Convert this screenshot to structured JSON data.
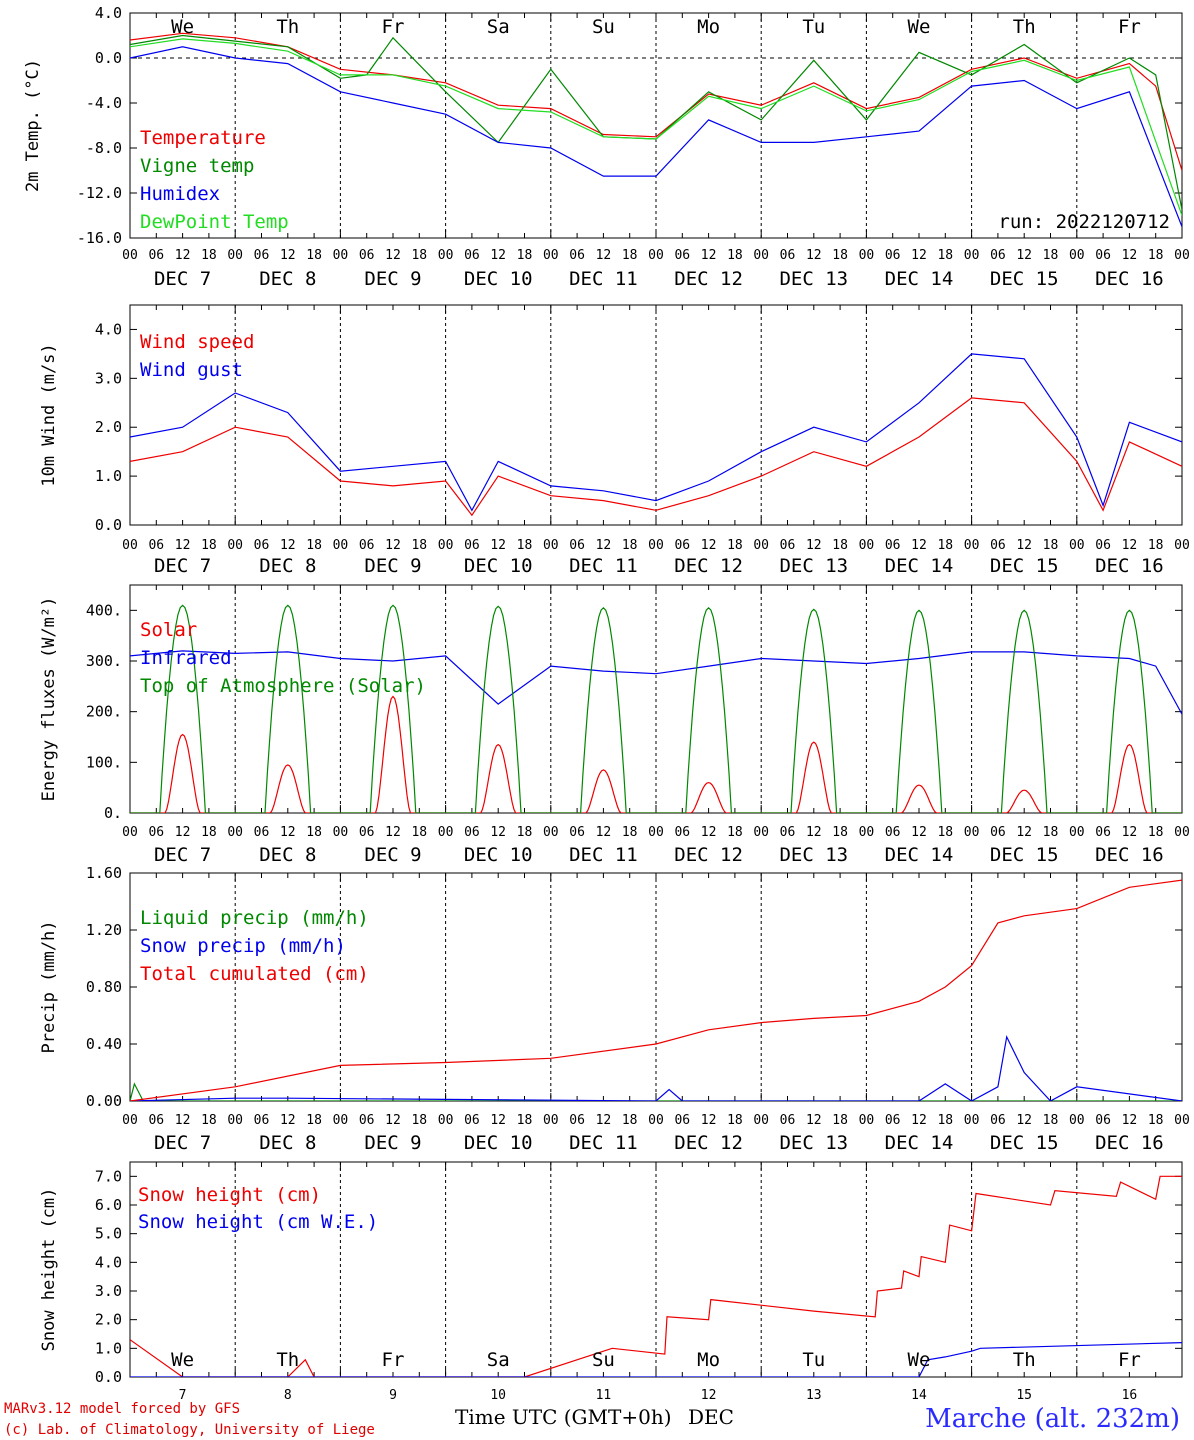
{
  "station": "Marche (alt. 232m)",
  "footer_model": "MARv3.12 model forced by GFS",
  "footer_copyright": "(c) Lab. of Climatology, University of Liege",
  "run_label": "run: 2022120712",
  "x_axis_title": "Time UTC (GMT+0h)",
  "x_axis_unit": "DEC",
  "hour_ticks": [
    "00",
    "06",
    "12",
    "18"
  ],
  "final_tick": "00",
  "days": [
    "DEC  7",
    "DEC  8",
    "DEC  9",
    "DEC 10",
    "DEC 11",
    "DEC 12",
    "DEC 13",
    "DEC 14",
    "DEC 15",
    "DEC 16"
  ],
  "day_numbers": [
    "7",
    "8",
    "9",
    "10",
    "11",
    "12",
    "13",
    "14",
    "15",
    "16"
  ],
  "weekdays": [
    {
      "label": "We",
      "color": "#000000"
    },
    {
      "label": "Th",
      "color": "#000000"
    },
    {
      "label": "Fr",
      "color": "#000000"
    },
    {
      "label": "Sa",
      "color": "#e00000"
    },
    {
      "label": "Su",
      "color": "#e00000"
    },
    {
      "label": "Mo",
      "color": "#000000"
    },
    {
      "label": "Tu",
      "color": "#000000"
    },
    {
      "label": "We",
      "color": "#000000"
    },
    {
      "label": "Th",
      "color": "#000000"
    },
    {
      "label": "Fr",
      "color": "#000000"
    }
  ],
  "colors": {
    "red": "#ee0000",
    "green": "#008800",
    "blue": "#0000ee",
    "lightgreen": "#22dd22"
  },
  "chart_data": [
    {
      "type": "line",
      "ylabel": "2m Temp. (°C)",
      "ylim": [
        -16,
        4
      ],
      "yticks": [
        "4.0",
        "0.0",
        "-4.0",
        "-8.0",
        "-12.0",
        "-16.0"
      ],
      "zero_line": true,
      "x_range_hours": [
        0,
        240
      ],
      "series": [
        {
          "name": "Temperature",
          "color": "#ee0000",
          "x": [
            0,
            12,
            24,
            36,
            48,
            60,
            72,
            84,
            96,
            108,
            120,
            132,
            144,
            156,
            168,
            180,
            192,
            204,
            216,
            228,
            234,
            240
          ],
          "y": [
            1.6,
            2.2,
            1.8,
            1.0,
            -1.0,
            -1.5,
            -2.2,
            -4.2,
            -4.5,
            -6.8,
            -7.0,
            -3.2,
            -4.2,
            -2.2,
            -4.5,
            -3.5,
            -1.0,
            0.0,
            -1.8,
            -0.5,
            -2.5,
            -10.0
          ]
        },
        {
          "name": "Vigne temp",
          "color": "#008800",
          "x": [
            0,
            12,
            24,
            36,
            48,
            54,
            60,
            72,
            84,
            96,
            108,
            120,
            132,
            144,
            156,
            168,
            180,
            192,
            204,
            216,
            228,
            234,
            240
          ],
          "y": [
            1.2,
            2.0,
            1.5,
            1.0,
            -1.8,
            -1.5,
            1.8,
            -3.0,
            -7.5,
            -1.0,
            -7.0,
            -7.2,
            -3.0,
            -5.5,
            -0.2,
            -5.5,
            0.5,
            -1.5,
            1.2,
            -2.2,
            0.0,
            -1.5,
            -13.5
          ]
        },
        {
          "name": "Humidex",
          "color": "#0000ee",
          "x": [
            0,
            12,
            24,
            36,
            48,
            60,
            72,
            84,
            96,
            108,
            120,
            132,
            144,
            156,
            168,
            180,
            192,
            204,
            216,
            228,
            240
          ],
          "y": [
            0.0,
            1.0,
            0.0,
            -0.5,
            -3.0,
            -4.0,
            -5.0,
            -7.5,
            -8.0,
            -10.5,
            -10.5,
            -5.5,
            -7.5,
            -7.5,
            -7.0,
            -6.5,
            -2.5,
            -2.0,
            -4.5,
            -3.0,
            -15.0
          ]
        },
        {
          "name": "DewPoint Temp",
          "color": "#22dd22",
          "x": [
            0,
            12,
            24,
            36,
            48,
            60,
            72,
            84,
            96,
            108,
            120,
            132,
            144,
            156,
            168,
            180,
            192,
            204,
            216,
            228,
            240
          ],
          "y": [
            1.0,
            1.7,
            1.3,
            0.6,
            -1.5,
            -1.5,
            -2.5,
            -4.5,
            -4.8,
            -7.0,
            -7.2,
            -3.4,
            -4.5,
            -2.5,
            -4.7,
            -3.7,
            -1.2,
            -0.2,
            -2.0,
            -0.8,
            -14.0
          ]
        }
      ]
    },
    {
      "type": "line",
      "ylabel": "10m Wind (m/s)",
      "ylim": [
        0,
        4.5
      ],
      "yticks": [
        "4.0",
        "3.0",
        "2.0",
        "1.0",
        "0.0"
      ],
      "x_range_hours": [
        0,
        240
      ],
      "series": [
        {
          "name": "Wind speed",
          "color": "#ee0000",
          "x": [
            0,
            12,
            24,
            36,
            48,
            60,
            72,
            78,
            84,
            96,
            108,
            120,
            132,
            144,
            156,
            168,
            180,
            192,
            204,
            216,
            222,
            228,
            240
          ],
          "y": [
            1.3,
            1.5,
            2.0,
            1.8,
            0.9,
            0.8,
            0.9,
            0.2,
            1.0,
            0.6,
            0.5,
            0.3,
            0.6,
            1.0,
            1.5,
            1.2,
            1.8,
            2.6,
            2.5,
            1.3,
            0.3,
            1.7,
            1.2
          ]
        },
        {
          "name": "Wind gust",
          "color": "#0000ee",
          "x": [
            0,
            12,
            24,
            36,
            48,
            60,
            72,
            78,
            84,
            96,
            108,
            120,
            132,
            144,
            156,
            168,
            180,
            192,
            204,
            216,
            222,
            228,
            240
          ],
          "y": [
            1.8,
            2.0,
            2.7,
            2.3,
            1.1,
            1.2,
            1.3,
            0.3,
            1.3,
            0.8,
            0.7,
            0.5,
            0.9,
            1.5,
            2.0,
            1.7,
            2.5,
            3.5,
            3.4,
            1.8,
            0.4,
            2.1,
            1.7
          ]
        }
      ]
    },
    {
      "type": "line",
      "ylabel": "Energy fluxes (W/m²)",
      "ylim": [
        0,
        450
      ],
      "yticks": [
        "400.",
        "300.",
        "200.",
        "100.",
        "0."
      ],
      "x_range_hours": [
        0,
        240
      ],
      "daily_peaks": {
        "Solar": [
          155,
          95,
          230,
          135,
          85,
          60,
          140,
          55,
          45,
          135
        ],
        "Top of Atmosphere (Solar)": [
          410,
          410,
          410,
          408,
          405,
          405,
          402,
          400,
          400,
          400
        ]
      },
      "series": [
        {
          "name": "Solar",
          "color": "#ee0000"
        },
        {
          "name": "Infrared",
          "color": "#0000ee",
          "x": [
            0,
            12,
            24,
            36,
            48,
            60,
            72,
            84,
            96,
            108,
            120,
            132,
            144,
            156,
            168,
            180,
            192,
            204,
            216,
            228,
            234,
            240
          ],
          "y": [
            310,
            320,
            315,
            318,
            305,
            300,
            310,
            215,
            290,
            280,
            275,
            290,
            305,
            300,
            295,
            305,
            318,
            318,
            310,
            305,
            290,
            195
          ]
        },
        {
          "name": "Top of Atmosphere (Solar)",
          "color": "#008800"
        }
      ]
    },
    {
      "type": "line",
      "ylabel": "Precip (mm/h)",
      "ylim": [
        0,
        1.6
      ],
      "yticks": [
        "1.60",
        "1.20",
        "0.80",
        "0.40",
        "0.00"
      ],
      "x_range_hours": [
        0,
        240
      ],
      "series": [
        {
          "name": "Liquid precip (mm/h)",
          "color": "#008800",
          "x": [
            0,
            1,
            3,
            240
          ],
          "y": [
            0.0,
            0.12,
            0.0,
            0.0
          ]
        },
        {
          "name": "Snow precip (mm/h)",
          "color": "#0000ee",
          "x": [
            0,
            24,
            36,
            120,
            123,
            126,
            180,
            186,
            192,
            198,
            200,
            204,
            210,
            216,
            240
          ],
          "y": [
            0.0,
            0.02,
            0.02,
            0.0,
            0.08,
            0.0,
            0.0,
            0.12,
            0.0,
            0.1,
            0.45,
            0.2,
            0.0,
            0.1,
            0.0
          ]
        },
        {
          "name": "Total cumulated (cm)",
          "color": "#ee0000",
          "x": [
            0,
            24,
            48,
            72,
            96,
            120,
            132,
            144,
            156,
            168,
            180,
            186,
            192,
            198,
            204,
            216,
            228,
            240
          ],
          "y": [
            0.0,
            0.1,
            0.25,
            0.27,
            0.3,
            0.4,
            0.5,
            0.55,
            0.58,
            0.6,
            0.7,
            0.8,
            0.95,
            1.25,
            1.3,
            1.35,
            1.5,
            1.55
          ]
        }
      ]
    },
    {
      "type": "line",
      "ylabel": "Snow height (cm)",
      "ylim": [
        0,
        7.5
      ],
      "yticks": [
        "7.0",
        "6.0",
        "5.0",
        "4.0",
        "3.0",
        "2.0",
        "1.0",
        "0.0"
      ],
      "x_range_hours": [
        0,
        240
      ],
      "series": [
        {
          "name": "Snow height (cm)",
          "color": "#ee0000",
          "x": [
            0,
            12,
            24,
            36,
            40,
            42,
            44,
            66,
            90,
            108,
            110,
            122,
            122.5,
            132,
            132.5,
            156,
            170,
            170.5,
            176,
            176.5,
            180,
            180.5,
            186,
            187,
            192,
            193,
            210,
            211,
            225,
            226,
            234,
            235,
            240
          ],
          "y": [
            1.3,
            0.0,
            0.0,
            0.0,
            0.6,
            0.0,
            0.0,
            0.0,
            0.0,
            0.9,
            1.0,
            0.8,
            2.1,
            2.0,
            2.7,
            2.3,
            2.1,
            3.0,
            3.1,
            3.7,
            3.5,
            4.2,
            4.0,
            5.3,
            5.1,
            6.4,
            6.0,
            6.5,
            6.3,
            6.8,
            6.2,
            7.0,
            7.0
          ]
        },
        {
          "name": "Snow height (cm W.E.)",
          "color": "#0000ee",
          "x": [
            0,
            180,
            182,
            186,
            192,
            194,
            240
          ],
          "y": [
            0.0,
            0.0,
            0.6,
            0.7,
            0.9,
            1.0,
            1.2
          ]
        }
      ]
    }
  ]
}
